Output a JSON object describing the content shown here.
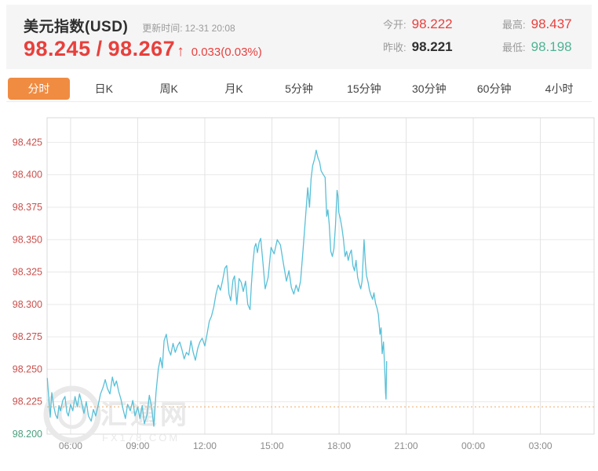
{
  "header": {
    "title": "美元指数(USD)",
    "update_label": "更新时间:",
    "update_time": "12-31 20:08",
    "bid": "98.245",
    "price_sep": "/",
    "ask": "98.267",
    "arrow": "↑",
    "change": "0.033(0.03%)",
    "stats": {
      "open_label": "今开:",
      "open": "98.222",
      "high_label": "最高:",
      "high": "98.437",
      "prev_label": "昨收:",
      "prev": "98.221",
      "low_label": "最低:",
      "low": "98.198"
    }
  },
  "tabs": [
    {
      "label": "分时",
      "active": true
    },
    {
      "label": "日K",
      "active": false
    },
    {
      "label": "周K",
      "active": false
    },
    {
      "label": "月K",
      "active": false
    },
    {
      "label": "5分钟",
      "active": false
    },
    {
      "label": "15分钟",
      "active": false
    },
    {
      "label": "30分钟",
      "active": false
    },
    {
      "label": "60分钟",
      "active": false
    },
    {
      "label": "4小时",
      "active": false
    }
  ],
  "colors": {
    "up_red": "#e8403c",
    "down_green": "#4fb392",
    "axis_red": "#c9504c",
    "axis_green": "#4a9e7c",
    "axis_gray": "#8b8b8b",
    "accent_orange": "#f08c42",
    "line_blue": "#58c0d8",
    "prev_close_orange": "#f0b478",
    "grid": "#e9e9e9",
    "border": "#d8d8d8",
    "watermark": "#e9e9e9"
  },
  "chart_data": {
    "type": "line",
    "x_tick_labels": [
      "06:00",
      "09:00",
      "12:00",
      "15:00",
      "18:00",
      "21:00",
      "00:00",
      "03:00"
    ],
    "x_tick_hours": [
      6,
      9,
      12,
      15,
      18,
      21,
      24,
      27
    ],
    "y_ticks": [
      98.425,
      98.4,
      98.375,
      98.35,
      98.325,
      98.3,
      98.275,
      98.25,
      98.225,
      98.2
    ],
    "ylim": [
      98.2,
      98.444
    ],
    "xlim_hours": [
      4.95,
      29.4
    ],
    "prev_close": 98.221,
    "grid": true,
    "watermark": {
      "text": "汇通网",
      "subtext": "FX178.COM"
    },
    "series": [
      {
        "name": "分时",
        "points": [
          [
            4.96,
            98.243
          ],
          [
            5.04,
            98.224
          ],
          [
            5.09,
            98.213
          ],
          [
            5.16,
            98.232
          ],
          [
            5.25,
            98.221
          ],
          [
            5.33,
            98.215
          ],
          [
            5.41,
            98.212
          ],
          [
            5.48,
            98.222
          ],
          [
            5.55,
            98.218
          ],
          [
            5.65,
            98.226
          ],
          [
            5.75,
            98.229
          ],
          [
            5.83,
            98.217
          ],
          [
            5.9,
            98.214
          ],
          [
            6.0,
            98.223
          ],
          [
            6.1,
            98.218
          ],
          [
            6.2,
            98.229
          ],
          [
            6.3,
            98.221
          ],
          [
            6.4,
            98.231
          ],
          [
            6.5,
            98.224
          ],
          [
            6.6,
            98.216
          ],
          [
            6.7,
            98.225
          ],
          [
            6.8,
            98.214
          ],
          [
            6.92,
            98.21
          ],
          [
            7.02,
            98.219
          ],
          [
            7.12,
            98.214
          ],
          [
            7.23,
            98.222
          ],
          [
            7.34,
            98.231
          ],
          [
            7.45,
            98.236
          ],
          [
            7.55,
            98.242
          ],
          [
            7.65,
            98.235
          ],
          [
            7.76,
            98.231
          ],
          [
            7.87,
            98.244
          ],
          [
            7.96,
            98.237
          ],
          [
            8.05,
            98.241
          ],
          [
            8.15,
            98.233
          ],
          [
            8.25,
            98.227
          ],
          [
            8.35,
            98.219
          ],
          [
            8.45,
            98.212
          ],
          [
            8.55,
            98.223
          ],
          [
            8.67,
            98.218
          ],
          [
            8.78,
            98.226
          ],
          [
            8.88,
            98.214
          ],
          [
            9.0,
            98.221
          ],
          [
            9.1,
            98.212
          ],
          [
            9.2,
            98.222
          ],
          [
            9.3,
            98.208
          ],
          [
            9.42,
            98.215
          ],
          [
            9.52,
            98.23
          ],
          [
            9.62,
            98.221
          ],
          [
            9.72,
            98.206
          ],
          [
            9.82,
            98.232
          ],
          [
            9.92,
            98.25
          ],
          [
            10.02,
            98.259
          ],
          [
            10.1,
            98.251
          ],
          [
            10.18,
            98.272
          ],
          [
            10.28,
            98.277
          ],
          [
            10.38,
            98.265
          ],
          [
            10.48,
            98.261
          ],
          [
            10.58,
            98.27
          ],
          [
            10.68,
            98.263
          ],
          [
            10.78,
            98.268
          ],
          [
            10.88,
            98.271
          ],
          [
            10.98,
            98.265
          ],
          [
            11.08,
            98.258
          ],
          [
            11.18,
            98.263
          ],
          [
            11.28,
            98.261
          ],
          [
            11.38,
            98.272
          ],
          [
            11.48,
            98.263
          ],
          [
            11.58,
            98.257
          ],
          [
            11.68,
            98.266
          ],
          [
            11.78,
            98.271
          ],
          [
            11.88,
            98.274
          ],
          [
            12.0,
            98.268
          ],
          [
            12.1,
            98.277
          ],
          [
            12.2,
            98.287
          ],
          [
            12.3,
            98.291
          ],
          [
            12.4,
            98.298
          ],
          [
            12.5,
            98.308
          ],
          [
            12.6,
            98.315
          ],
          [
            12.7,
            98.311
          ],
          [
            12.8,
            98.319
          ],
          [
            12.9,
            98.328
          ],
          [
            12.98,
            98.33
          ],
          [
            13.08,
            98.308
          ],
          [
            13.16,
            98.303
          ],
          [
            13.26,
            98.319
          ],
          [
            13.33,
            98.322
          ],
          [
            13.43,
            98.3
          ],
          [
            13.53,
            98.32
          ],
          [
            13.63,
            98.317
          ],
          [
            13.72,
            98.31
          ],
          [
            13.82,
            98.318
          ],
          [
            13.92,
            98.3
          ],
          [
            14.02,
            98.296
          ],
          [
            14.08,
            98.315
          ],
          [
            14.15,
            98.332
          ],
          [
            14.22,
            98.344
          ],
          [
            14.28,
            98.347
          ],
          [
            14.35,
            98.34
          ],
          [
            14.43,
            98.348
          ],
          [
            14.5,
            98.351
          ],
          [
            14.6,
            98.332
          ],
          [
            14.7,
            98.312
          ],
          [
            14.83,
            98.321
          ],
          [
            14.96,
            98.344
          ],
          [
            15.1,
            98.339
          ],
          [
            15.24,
            98.35
          ],
          [
            15.38,
            98.346
          ],
          [
            15.52,
            98.331
          ],
          [
            15.65,
            98.318
          ],
          [
            15.76,
            98.326
          ],
          [
            15.87,
            98.313
          ],
          [
            15.98,
            98.308
          ],
          [
            16.08,
            98.315
          ],
          [
            16.18,
            98.31
          ],
          [
            16.28,
            98.318
          ],
          [
            16.4,
            98.344
          ],
          [
            16.5,
            98.367
          ],
          [
            16.6,
            98.39
          ],
          [
            16.68,
            98.375
          ],
          [
            16.75,
            98.397
          ],
          [
            16.82,
            98.407
          ],
          [
            16.9,
            98.412
          ],
          [
            16.98,
            98.419
          ],
          [
            17.06,
            98.413
          ],
          [
            17.13,
            98.41
          ],
          [
            17.2,
            98.403
          ],
          [
            17.3,
            98.4
          ],
          [
            17.38,
            98.398
          ],
          [
            17.45,
            98.368
          ],
          [
            17.5,
            98.373
          ],
          [
            17.56,
            98.362
          ],
          [
            17.63,
            98.341
          ],
          [
            17.7,
            98.337
          ],
          [
            17.77,
            98.343
          ],
          [
            17.84,
            98.361
          ],
          [
            17.91,
            98.388
          ],
          [
            17.95,
            98.384
          ],
          [
            17.99,
            98.371
          ],
          [
            18.06,
            98.366
          ],
          [
            18.13,
            98.359
          ],
          [
            18.2,
            98.35
          ],
          [
            18.27,
            98.337
          ],
          [
            18.34,
            98.341
          ],
          [
            18.41,
            98.334
          ],
          [
            18.48,
            98.339
          ],
          [
            18.55,
            98.342
          ],
          [
            18.62,
            98.33
          ],
          [
            18.69,
            98.326
          ],
          [
            18.76,
            98.334
          ],
          [
            18.83,
            98.321
          ],
          [
            18.9,
            98.316
          ],
          [
            18.97,
            98.312
          ],
          [
            19.03,
            98.318
          ],
          [
            19.08,
            98.336
          ],
          [
            19.12,
            98.35
          ],
          [
            19.18,
            98.331
          ],
          [
            19.23,
            98.322
          ],
          [
            19.3,
            98.317
          ],
          [
            19.36,
            98.311
          ],
          [
            19.43,
            98.307
          ],
          [
            19.5,
            98.304
          ],
          [
            19.56,
            98.309
          ],
          [
            19.63,
            98.301
          ],
          [
            19.7,
            98.297
          ],
          [
            19.76,
            98.292
          ],
          [
            19.83,
            98.277
          ],
          [
            19.88,
            98.282
          ],
          [
            19.93,
            98.262
          ],
          [
            19.99,
            98.271
          ],
          [
            20.05,
            98.246
          ],
          [
            20.08,
            98.232
          ],
          [
            20.1,
            98.227
          ],
          [
            20.13,
            98.256
          ]
        ]
      }
    ]
  }
}
